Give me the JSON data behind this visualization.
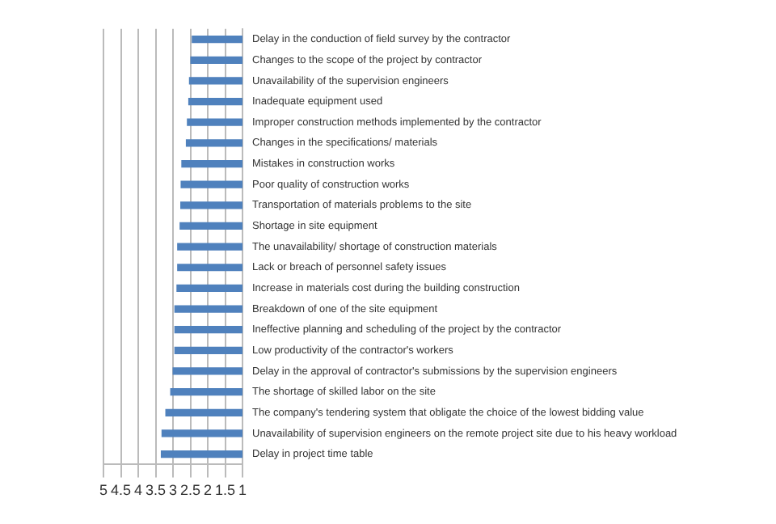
{
  "chart_data": {
    "type": "bar",
    "orientation": "horizontal",
    "categories": [
      "Delay in the conduction of field survey by the contractor",
      "Changes to the scope of the project by contractor",
      "Unavailability of the supervision engineers",
      "Inadequate equipment used",
      "Improper construction methods implemented by the contractor",
      "Changes in the specifications/ materials",
      "Mistakes in construction works",
      "Poor quality of construction works",
      "Transportation of materials problems to the site",
      "Shortage in site equipment",
      "The unavailability/ shortage of construction materials",
      "Lack or breach of personnel safety issues",
      "Increase in materials cost during the building construction",
      "Breakdown of one of the site equipment",
      "Ineffective planning and scheduling of the project by the contractor",
      "Low productivity of the contractor's workers",
      "Delay in the approval of contractor's submissions by the supervision engineers",
      "The shortage of skilled labor on the site",
      "The company's tendering system that obligate the choice of the lowest bidding value",
      "Unavailability of supervision engineers on the remote project site due to his heavy workload",
      "Delay in project time table"
    ],
    "values": [
      2.46,
      2.5,
      2.54,
      2.56,
      2.6,
      2.63,
      2.76,
      2.78,
      2.79,
      2.81,
      2.88,
      2.88,
      2.9,
      2.96,
      2.96,
      2.96,
      3.01,
      3.08,
      3.22,
      3.33,
      3.35
    ],
    "color": "#4f81bd",
    "xlim": [
      5,
      1
    ],
    "xticks": [
      5,
      4.5,
      4,
      3.5,
      3,
      2.5,
      2,
      1.5,
      1
    ],
    "grid": "x",
    "legend": false
  }
}
